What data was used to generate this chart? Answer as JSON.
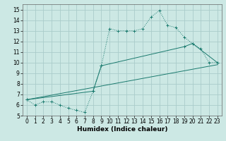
{
  "xlabel": "Humidex (Indice chaleur)",
  "bg_color": "#cce8e4",
  "grid_color": "#aaccca",
  "line_color": "#1a7a6e",
  "xlim": [
    -0.5,
    23.5
  ],
  "ylim": [
    5.0,
    15.5
  ],
  "xticks": [
    0,
    1,
    2,
    3,
    4,
    5,
    6,
    7,
    8,
    9,
    10,
    11,
    12,
    13,
    14,
    15,
    16,
    17,
    18,
    19,
    20,
    21,
    22,
    23
  ],
  "yticks": [
    5,
    6,
    7,
    8,
    9,
    10,
    11,
    12,
    13,
    14,
    15
  ],
  "series1_x": [
    0,
    1,
    2,
    3,
    4,
    5,
    6,
    7,
    8,
    9,
    10,
    11,
    12,
    13,
    14,
    15,
    16,
    17,
    18,
    19,
    20,
    21,
    22,
    23
  ],
  "series1_y": [
    6.5,
    6.0,
    6.3,
    6.3,
    6.0,
    5.7,
    5.5,
    5.3,
    7.3,
    9.7,
    13.2,
    13.0,
    13.0,
    13.0,
    13.2,
    14.3,
    14.9,
    13.5,
    13.3,
    12.4,
    11.8,
    11.3,
    10.0,
    10.0
  ],
  "series2_x": [
    0,
    8,
    9,
    19,
    20,
    23
  ],
  "series2_y": [
    6.5,
    7.3,
    9.7,
    11.5,
    11.8,
    10.0
  ],
  "series3_x": [
    0,
    23
  ],
  "series3_y": [
    6.5,
    9.8
  ],
  "tick_fontsize": 5.5,
  "xlabel_fontsize": 6.5
}
